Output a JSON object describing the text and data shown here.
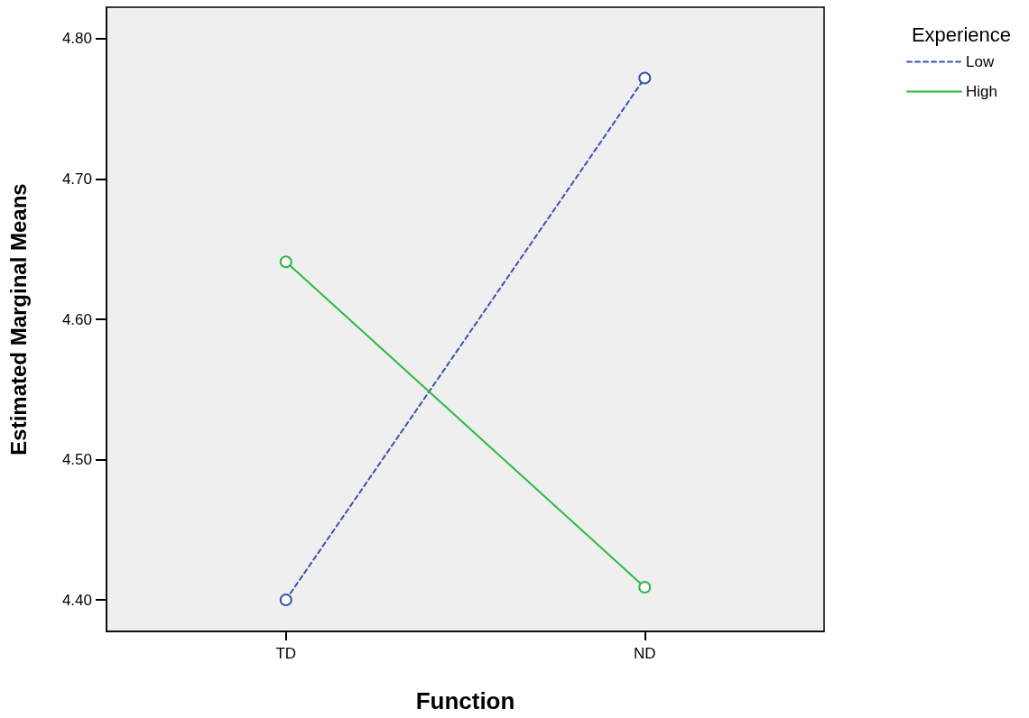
{
  "chart_data": {
    "type": "line",
    "xlabel": "Function",
    "ylabel": "Estimated Marginal Means",
    "legend_title": "Experience",
    "categories": [
      "TD",
      "ND"
    ],
    "series": [
      {
        "name": "Low",
        "color": "#3d51b0",
        "values": [
          4.4,
          4.772
        ],
        "line_style": "dashed"
      },
      {
        "name": "High",
        "color": "#2fb83f",
        "values": [
          4.641,
          4.409
        ],
        "line_style": "solid"
      }
    ],
    "ylim": [
      4.3775,
      4.8225
    ],
    "yticks": [
      {
        "value": 4.4,
        "label": "4.40"
      },
      {
        "value": 4.5,
        "label": "4.50"
      },
      {
        "value": 4.6,
        "label": "4.60"
      },
      {
        "value": 4.7,
        "label": "4.70"
      },
      {
        "value": 4.8,
        "label": "4.80"
      }
    ],
    "grid": false,
    "legend": "top right",
    "marker": "circle"
  }
}
